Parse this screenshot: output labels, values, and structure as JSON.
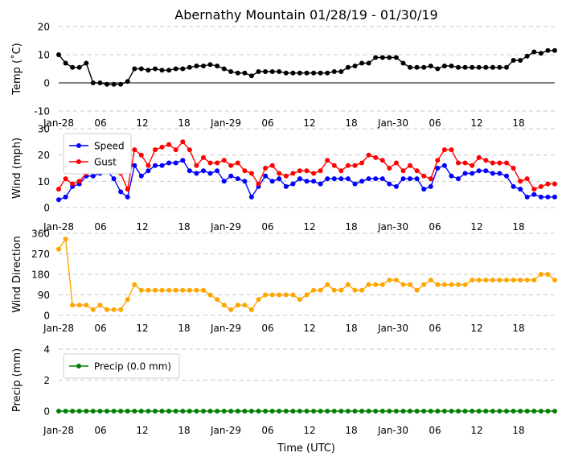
{
  "title": "Abernathy Mountain 01/28/19 - 01/30/19",
  "xlabel": "Time (UTC)",
  "colors": {
    "temp": "#000000",
    "speed": "#0000ff",
    "gust": "#ff0000",
    "dir": "#ffa500",
    "precip": "#008000",
    "grid": "#c8c8c8"
  },
  "chart_data": [
    {
      "type": "line",
      "name": "temperature",
      "ylabel": "Temp ( C)",
      "ylabel_display": "Temp (˚C)",
      "ylim": [
        -10,
        20
      ],
      "yticks": [
        -10,
        0,
        10,
        20
      ],
      "zero_line": true,
      "x_ticks": [
        "Jan-28",
        "06",
        "12",
        "18",
        "Jan-29",
        "06",
        "12",
        "18",
        "Jan-30",
        "06",
        "12",
        "18"
      ],
      "series": [
        {
          "name": "Temperature",
          "values": [
            10,
            7,
            5.5,
            5.5,
            7,
            0,
            0,
            -0.5,
            -0.5,
            -0.5,
            0.5,
            5,
            5,
            4.5,
            5,
            4.5,
            4.5,
            5,
            5,
            5.5,
            6,
            6,
            6.5,
            6,
            5,
            4,
            3.5,
            3.5,
            2.5,
            4,
            4,
            4,
            4,
            3.5,
            3.5,
            3.5,
            3.5,
            3.5,
            3.5,
            3.5,
            4,
            4,
            5.5,
            6,
            7,
            7,
            9,
            9,
            9,
            9,
            7,
            5.5,
            5.5,
            5.5,
            6,
            5,
            6,
            6,
            5.5,
            5.5,
            5.5,
            5.5,
            5.5,
            5.5,
            5.5,
            5.5,
            8,
            8,
            9.5,
            11,
            10.5,
            11.5,
            11.5
          ]
        }
      ]
    },
    {
      "type": "line",
      "name": "wind",
      "ylabel": "Wind (mph)",
      "ylim": [
        0,
        30
      ],
      "yticks": [
        0,
        10,
        20,
        30
      ],
      "legend": "top-left",
      "x_ticks": [
        "Jan-28",
        "06",
        "12",
        "18",
        "Jan-29",
        "06",
        "12",
        "18",
        "Jan-30",
        "06",
        "12",
        "18"
      ],
      "series": [
        {
          "name": "Speed",
          "values": [
            3,
            4,
            8,
            9,
            12,
            12,
            13,
            14,
            11,
            6,
            4,
            16,
            12,
            14,
            16,
            16,
            17,
            17,
            18,
            14,
            13,
            14,
            13,
            14,
            10,
            12,
            11,
            10,
            4,
            8,
            12,
            10,
            11,
            8,
            9,
            11,
            10,
            10,
            9,
            11,
            11,
            11,
            11,
            9,
            10,
            11,
            11,
            11,
            9,
            8,
            11,
            11,
            11,
            7,
            8,
            15,
            16,
            12,
            11,
            13,
            13,
            14,
            14,
            13,
            13,
            12,
            8,
            7,
            4,
            5,
            4,
            4,
            4
          ]
        },
        {
          "name": "Gust",
          "values": [
            7,
            11,
            9,
            10,
            13,
            16,
            17,
            17,
            17,
            13,
            7,
            22,
            20,
            16,
            22,
            23,
            24,
            22,
            25,
            22,
            16,
            19,
            17,
            17,
            18,
            16,
            17,
            14,
            13,
            9,
            15,
            16,
            13,
            12,
            13,
            14,
            14,
            13,
            14,
            18,
            16,
            14,
            16,
            16,
            17,
            20,
            19,
            18,
            15,
            17,
            14,
            16,
            14,
            12,
            11,
            18,
            22,
            22,
            17,
            17,
            16,
            19,
            18,
            17,
            17,
            17,
            15,
            10,
            11,
            7,
            8,
            9,
            9
          ]
        }
      ]
    },
    {
      "type": "line",
      "name": "direction",
      "ylabel": "Wind Direction",
      "ylim": [
        0,
        360
      ],
      "yticks": [
        0,
        90,
        180,
        270,
        360
      ],
      "x_ticks": [
        "Jan-28",
        "06",
        "12",
        "18",
        "Jan-29",
        "06",
        "12",
        "18",
        "Jan-30",
        "06",
        "12",
        "18"
      ],
      "series": [
        {
          "name": "Direction",
          "values": [
            290,
            335,
            45,
            45,
            45,
            25,
            45,
            25,
            25,
            25,
            70,
            135,
            110,
            110,
            110,
            110,
            110,
            110,
            110,
            110,
            110,
            110,
            90,
            70,
            45,
            25,
            45,
            45,
            25,
            70,
            90,
            90,
            90,
            90,
            90,
            70,
            90,
            110,
            110,
            135,
            110,
            110,
            135,
            110,
            110,
            135,
            135,
            135,
            155,
            155,
            135,
            135,
            110,
            135,
            155,
            135,
            135,
            135,
            135,
            135,
            155,
            155,
            155,
            155,
            155,
            155,
            155,
            155,
            155,
            155,
            180,
            180,
            155
          ]
        }
      ]
    },
    {
      "type": "line",
      "name": "precip",
      "ylabel": "Precip (mm)",
      "ylim": [
        0,
        4
      ],
      "yticks": [
        0,
        2,
        4
      ],
      "legend": "top-left",
      "x_ticks": [
        "Jan-28",
        "06",
        "12",
        "18",
        "Jan-29",
        "06",
        "12",
        "18",
        "Jan-30",
        "06",
        "12",
        "18"
      ],
      "series": [
        {
          "name": "Precip (0.0 mm)",
          "values": [
            0,
            0,
            0,
            0,
            0,
            0,
            0,
            0,
            0,
            0,
            0,
            0,
            0,
            0,
            0,
            0,
            0,
            0,
            0,
            0,
            0,
            0,
            0,
            0,
            0,
            0,
            0,
            0,
            0,
            0,
            0,
            0,
            0,
            0,
            0,
            0,
            0,
            0,
            0,
            0,
            0,
            0,
            0,
            0,
            0,
            0,
            0,
            0,
            0,
            0,
            0,
            0,
            0,
            0,
            0,
            0,
            0,
            0,
            0,
            0,
            0,
            0,
            0,
            0,
            0,
            0,
            0,
            0,
            0,
            0,
            0,
            0,
            0
          ]
        }
      ]
    }
  ]
}
